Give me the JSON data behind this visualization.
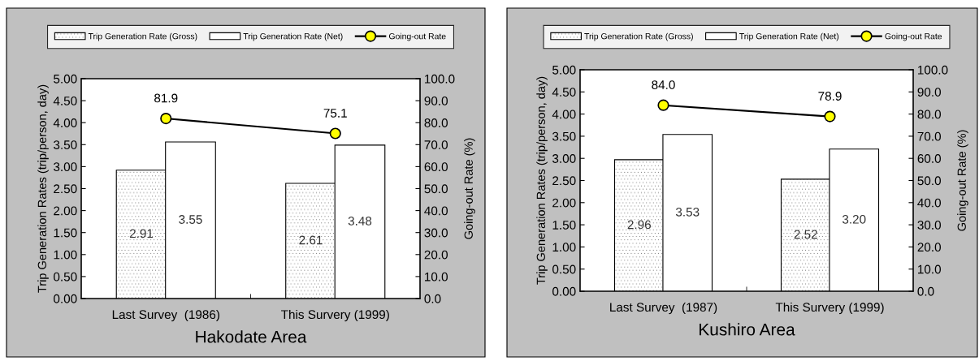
{
  "chart_data": [
    {
      "type": "bar",
      "xlabel": "Hakodate Area",
      "ylabel": "Trip Generation Rates (trip/person, day)",
      "y2label": "Going-out Rate (%)",
      "categories": [
        "Last Survey  (1986)",
        "This Survery (1999)"
      ],
      "series": [
        {
          "name": "Trip Generation Rate (Gross)",
          "color": "#ffffff",
          "values": [
            2.91,
            2.61
          ],
          "value_labels": [
            "2.91",
            "2.61"
          ]
        },
        {
          "name": "Trip Generation Rate (Net)",
          "color": "#ffffff",
          "values": [
            3.55,
            3.48
          ],
          "value_labels": [
            "3.55",
            "3.48"
          ]
        },
        {
          "name": "Going-out Rate",
          "type": "line",
          "axis": "y2",
          "color": "#ffff00",
          "marker": "circle",
          "values": [
            81.9,
            75.1
          ],
          "value_labels": [
            "81.9",
            "75.1"
          ]
        }
      ],
      "ylim": [
        0,
        5
      ],
      "yticks": [
        {
          "value": 0,
          "label": "0.00"
        },
        {
          "value": 0.5,
          "label": "0.50"
        },
        {
          "value": 1,
          "label": "1.00"
        },
        {
          "value": 1.5,
          "label": "1.50"
        },
        {
          "value": 2,
          "label": "2.00"
        },
        {
          "value": 2.5,
          "label": "2.50"
        },
        {
          "value": 3,
          "label": "3.00"
        },
        {
          "value": 3.5,
          "label": "3.50"
        },
        {
          "value": 4,
          "label": "4.00"
        },
        {
          "value": 4.5,
          "label": "4.50"
        },
        {
          "value": 5,
          "label": "5.00"
        }
      ],
      "y2lim": [
        0,
        100
      ],
      "y2ticks": [
        {
          "value": 0,
          "label": "0.0"
        },
        {
          "value": 10,
          "label": "10.0"
        },
        {
          "value": 20,
          "label": "20.0"
        },
        {
          "value": 30,
          "label": "30.0"
        },
        {
          "value": 40,
          "label": "40.0"
        },
        {
          "value": 50,
          "label": "50.0"
        },
        {
          "value": 60,
          "label": "60.0"
        },
        {
          "value": 70,
          "label": "70.0"
        },
        {
          "value": 80,
          "label": "80.0"
        },
        {
          "value": 90,
          "label": "90.0"
        },
        {
          "value": 100,
          "label": "100.0"
        }
      ],
      "legend": "top",
      "grid": false
    },
    {
      "type": "bar",
      "xlabel": "Kushiro Area",
      "ylabel": "Trip Generation Rates (trip/person, day)",
      "y2label": "Going-out Rate (%)",
      "categories": [
        "Last Survey  (1987)",
        "This Survery (1999)"
      ],
      "series": [
        {
          "name": "Trip Generation Rate (Gross)",
          "color": "#ffffff",
          "values": [
            2.96,
            2.52
          ],
          "value_labels": [
            "2.96",
            "2.52"
          ]
        },
        {
          "name": "Trip Generation Rate (Net)",
          "color": "#ffffff",
          "values": [
            3.53,
            3.2
          ],
          "value_labels": [
            "3.53",
            "3.20"
          ]
        },
        {
          "name": "Going-out Rate",
          "type": "line",
          "axis": "y2",
          "color": "#ffff00",
          "marker": "circle",
          "values": [
            84.0,
            78.9
          ],
          "value_labels": [
            "84.0",
            "78.9"
          ]
        }
      ],
      "ylim": [
        0,
        5
      ],
      "yticks": [
        {
          "value": 0,
          "label": "0.00"
        },
        {
          "value": 0.5,
          "label": "0.50"
        },
        {
          "value": 1,
          "label": "1.00"
        },
        {
          "value": 1.5,
          "label": "1.50"
        },
        {
          "value": 2,
          "label": "2.00"
        },
        {
          "value": 2.5,
          "label": "2.50"
        },
        {
          "value": 3,
          "label": "3.00"
        },
        {
          "value": 3.5,
          "label": "3.50"
        },
        {
          "value": 4,
          "label": "4.00"
        },
        {
          "value": 4.5,
          "label": "4.50"
        },
        {
          "value": 5,
          "label": "5.00"
        }
      ],
      "y2lim": [
        0,
        100
      ],
      "y2ticks": [
        {
          "value": 0,
          "label": "0.0"
        },
        {
          "value": 10,
          "label": "10.0"
        },
        {
          "value": 20,
          "label": "20.0"
        },
        {
          "value": 30,
          "label": "30.0"
        },
        {
          "value": 40,
          "label": "40.0"
        },
        {
          "value": 50,
          "label": "50.0"
        },
        {
          "value": 60,
          "label": "60.0"
        },
        {
          "value": 70,
          "label": "70.0"
        },
        {
          "value": 80,
          "label": "80.0"
        },
        {
          "value": 90,
          "label": "90.0"
        },
        {
          "value": 100,
          "label": "100.0"
        }
      ],
      "legend": "top",
      "grid": false
    }
  ]
}
